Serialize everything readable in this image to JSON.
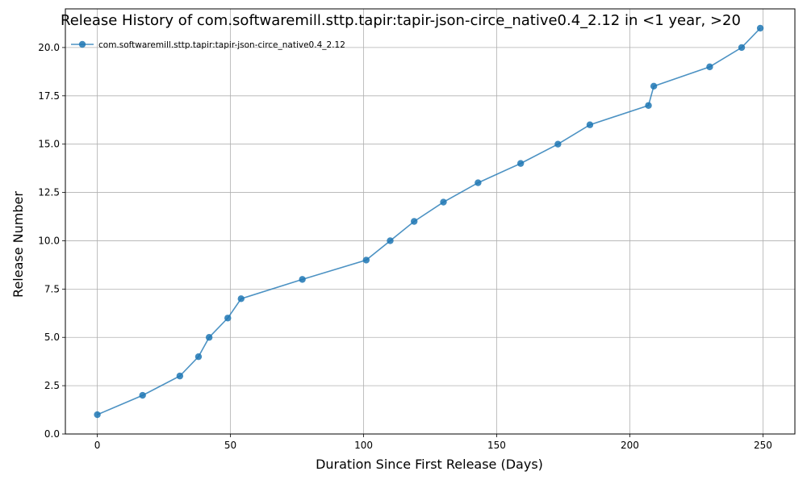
{
  "chart_data": {
    "type": "line",
    "title": "Release History of com.softwaremill.sttp.tapir:tapir-json-circe_native0.4_2.12 in <1 year, >20",
    "xlabel": "Duration Since First Release (Days)",
    "ylabel": "Release Number",
    "xlim": [
      -12,
      262
    ],
    "ylim": [
      0,
      22
    ],
    "xticks": [
      0,
      50,
      100,
      150,
      200,
      250
    ],
    "xtick_labels": [
      "0",
      "50",
      "100",
      "150",
      "200",
      "250"
    ],
    "yticks": [
      0,
      2.5,
      5,
      7.5,
      10,
      12.5,
      15,
      17.5,
      20
    ],
    "ytick_labels": [
      "0.0",
      "2.5",
      "5.0",
      "7.5",
      "10.0",
      "12.5",
      "15.0",
      "17.5",
      "20.0"
    ],
    "grid": true,
    "legend_position": "top-left",
    "series": [
      {
        "name": "com.softwaremill.sttp.tapir:tapir-json-circe_native0.4_2.12",
        "color": "#1f77b4",
        "marker": "circle",
        "x": [
          0,
          17,
          31,
          38,
          42,
          49,
          54,
          77,
          101,
          110,
          119,
          130,
          143,
          159,
          173,
          185,
          207,
          209,
          230,
          242,
          249
        ],
        "y": [
          1,
          2,
          3,
          4,
          5,
          6,
          7,
          8,
          9,
          10,
          11,
          12,
          13,
          14,
          15,
          16,
          17,
          18,
          19,
          20,
          21
        ]
      }
    ]
  }
}
